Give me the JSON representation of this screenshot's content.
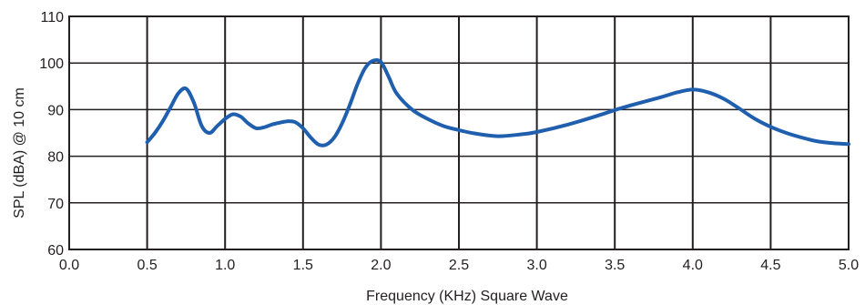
{
  "chart_data": {
    "type": "line",
    "title": "",
    "xlabel": "Frequency (KHz) Square Wave",
    "ylabel": "SPL (dBA) @ 10 cm",
    "xlim": [
      0.0,
      5.0
    ],
    "ylim": [
      60,
      110
    ],
    "x_ticks": [
      "0.0",
      "0.5",
      "1.0",
      "1.5",
      "2.0",
      "2.5",
      "3.0",
      "3.5",
      "4.0",
      "4.5",
      "5.0"
    ],
    "y_ticks": [
      "60",
      "70",
      "80",
      "90",
      "100",
      "110"
    ],
    "grid": true,
    "legend": "none",
    "colors": {
      "line": "#1f5fae",
      "grid": "#231f20",
      "text": "#231f20"
    },
    "series": [
      {
        "x": [
          0.5,
          0.55,
          0.6,
          0.65,
          0.7,
          0.75,
          0.8,
          0.85,
          0.9,
          0.95,
          1.0,
          1.05,
          1.1,
          1.15,
          1.2,
          1.25,
          1.3,
          1.35,
          1.4,
          1.45,
          1.5,
          1.55,
          1.6,
          1.65,
          1.7,
          1.75,
          1.8,
          1.85,
          1.9,
          1.95,
          2.0,
          2.05,
          2.1,
          2.2,
          2.3,
          2.4,
          2.5,
          2.6,
          2.75,
          2.9,
          3.0,
          3.2,
          3.4,
          3.5,
          3.6,
          3.8,
          3.9,
          4.0,
          4.1,
          4.2,
          4.3,
          4.4,
          4.5,
          4.6,
          4.7,
          4.8,
          4.9,
          5.0
        ],
        "y": [
          83,
          85,
          87.5,
          90.5,
          93.5,
          94.5,
          91.5,
          86.5,
          85,
          86.5,
          88,
          89,
          88.5,
          87,
          86,
          86.2,
          86.8,
          87.2,
          87.5,
          87.3,
          86,
          84,
          82.5,
          82.5,
          84,
          87,
          91,
          95.5,
          99,
          100.5,
          100.2,
          97,
          93.5,
          90,
          88,
          86.5,
          85.6,
          84.9,
          84.3,
          84.7,
          85.2,
          86.8,
          88.8,
          89.9,
          90.9,
          92.7,
          93.7,
          94.3,
          93.7,
          92.3,
          90.2,
          88,
          86.3,
          85,
          84,
          83.2,
          82.8,
          82.6
        ]
      }
    ]
  }
}
